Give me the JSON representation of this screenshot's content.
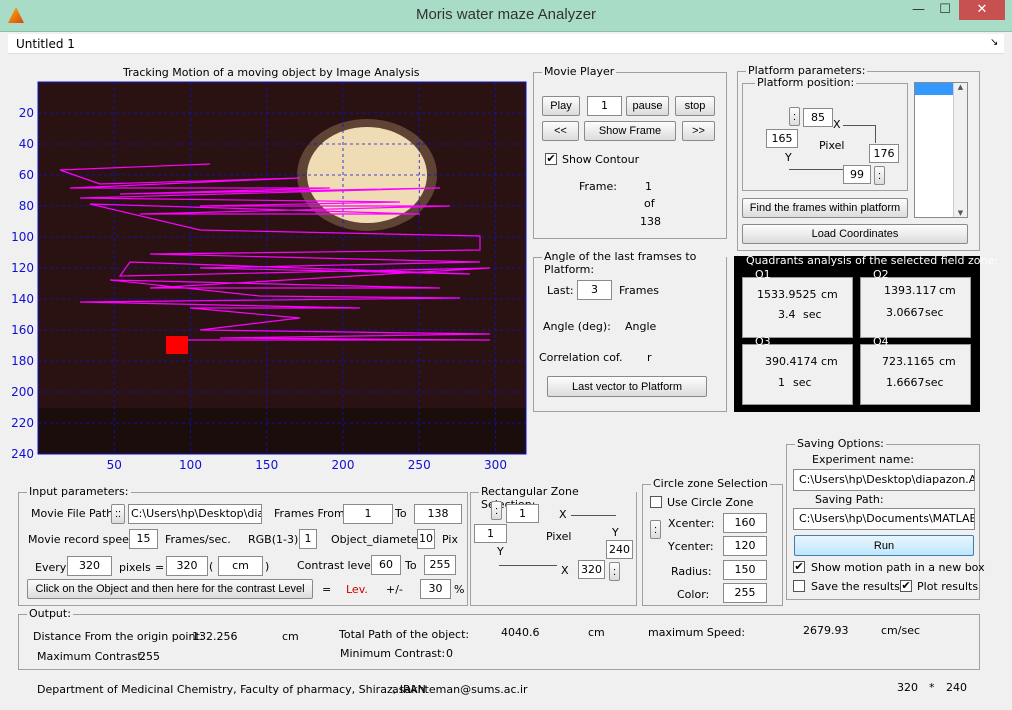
{
  "window": {
    "title": "Moris water maze Analyzer",
    "min": "—",
    "max": "☐",
    "close": "✕"
  },
  "menubar": {
    "label": "Untitled 1",
    "arrow": "↘"
  },
  "plot": {
    "title": "Tracking Motion of a moving object by Image Analysis",
    "yticks": [
      "20",
      "40",
      "60",
      "80",
      "100",
      "120",
      "140",
      "160",
      "180",
      "200",
      "220",
      "240"
    ],
    "xticks": [
      "50",
      "100",
      "150",
      "200",
      "250",
      "300"
    ],
    "colors": {
      "axis": "#1010d0",
      "path": "#ff00ff",
      "marker": "#ff0000"
    }
  },
  "movie_player": {
    "title": "Movie Player",
    "play": "Play",
    "frame_value": "1",
    "pause": "pause",
    "stop": "stop",
    "prev": "<<",
    "show_frame": "Show Frame",
    "next": ">>",
    "show_contour": "Show Contour",
    "show_contour_checked": "✔",
    "frame_label": "Frame:",
    "frame_current": "1",
    "of_label": "of",
    "frame_total": "138"
  },
  "angle_panel": {
    "title": "Angle of the last framses to Platform:",
    "last_label": "Last:",
    "last_value": "3",
    "frames_label": "Frames",
    "angle_label": "Angle (deg):",
    "angle_value": "Angle",
    "corr_label": "Correlation cof.",
    "corr_value": "r",
    "last_vector_btn": "Last vector to Platform"
  },
  "platform": {
    "title": "Platform parameters:",
    "position_title": "Platform position:",
    "dots_btn": ":",
    "x1": "85",
    "x_label": "X",
    "y1": "165",
    "pixel_label": "Pixel",
    "x2": "176",
    "y_label": "Y",
    "y2": "99",
    "find_btn": "Find the frames within platform",
    "load_btn": "Load Coordinates",
    "scroll_up": "▲",
    "scroll_down": "▼"
  },
  "quadrants": {
    "title": "Quadrants analysis of the selected field zone:",
    "items": [
      {
        "name": "Q1",
        "dist": "1533.9525",
        "unit": "cm",
        "time": "3.4",
        "tunit": "sec"
      },
      {
        "name": "Q2",
        "dist": "1393.117",
        "unit": "cm",
        "time": "3.0667",
        "tunit": "sec"
      },
      {
        "name": "Q3",
        "dist": "390.4174",
        "unit": "cm",
        "time": "1",
        "tunit": "sec"
      },
      {
        "name": "Q4",
        "dist": "723.1165",
        "unit": "cm",
        "time": "1.6667",
        "tunit": "sec"
      }
    ]
  },
  "saving": {
    "title": "Saving Options:",
    "exp_label": "Experiment name:",
    "exp_value": "C:\\Users\\hp\\Desktop\\diapazon.AVI",
    "path_label": "Saving Path:",
    "path_value": "C:\\Users\\hp\\Documents\\MATLAB\\",
    "run": "Run",
    "show_motion": "Show motion path in a new box",
    "show_motion_checked": "✔",
    "save_results": "Save the results",
    "save_results_checked": "",
    "plot_results": "Plot results",
    "plot_results_checked": "✔"
  },
  "input": {
    "title": "Input parameters:",
    "file_label": "Movie File Path:",
    "file_btn": "::",
    "file_value": "C:\\Users\\hp\\Desktop\\diapa",
    "frames_from_label": "Frames From:",
    "frames_from": "1",
    "to_label": "To",
    "frames_to": "138",
    "speed_label": "Movie record speed:",
    "speed_value": "15",
    "speed_unit": "Frames/sec.",
    "rgb_label": "RGB(1-3):",
    "rgb_value": "1",
    "diam_label": "Object_diameter:",
    "diam_value": "10",
    "diam_unit": "Pix",
    "every_label": "Every",
    "every_value": "320",
    "pixels_label": "pixels",
    "eq": "=",
    "cm_value": "320",
    "paren_open": "(",
    "cm_unit": "cm",
    "paren_close": ")",
    "contrast_label": "Contrast level:",
    "contrast_from": "60",
    "contrast_to_label": "To",
    "contrast_to": "255",
    "click_btn": "Click on the Object and then here for the contrast Level",
    "eq2": "=",
    "lev": "Lev.",
    "pm": "+/-",
    "pct_value": "30",
    "pct": "%"
  },
  "rect_zone": {
    "title": "Rectangular Zone Selection:",
    "dots_btn": ":",
    "x1": "1",
    "x_label": "X",
    "y1": "1",
    "pixel_label": "Pixel",
    "y_label": "Y",
    "y_label2": "Y",
    "y2": "240",
    "x2_label": "X",
    "x2": "320",
    "dots_btn2": ":"
  },
  "circle_zone": {
    "title": "Circle zone Selection",
    "use_label": "Use Circle Zone",
    "use_checked": "",
    "dots_btn": ":",
    "xc_label": "Xcenter:",
    "xc": "160",
    "yc_label": "Ycenter:",
    "yc": "120",
    "r_label": "Radius:",
    "r": "150",
    "color_label": "Color:",
    "color": "255"
  },
  "output": {
    "title": "Output:",
    "dist_label": "Distance From the origin point:",
    "dist_value": "132.256",
    "dist_unit": "cm",
    "total_label": "Total Path of the object:",
    "total_value": "4040.6",
    "total_unit": "cm",
    "speed_label": "maximum Speed:",
    "speed_value": "2679.93",
    "speed_unit": "cm/sec",
    "maxc_label": "Maximum Contrast:",
    "maxc_value": "255",
    "minc_label": "Minimum Contrast:",
    "minc_value": "0"
  },
  "footer": {
    "dept": "Department of Medicinal Chemistry,  Faculty of pharmacy, Shiraz, IRAN",
    "email": "asakhteman@sums.ac.ir",
    "w": "320",
    "star": "*",
    "h": "240"
  }
}
